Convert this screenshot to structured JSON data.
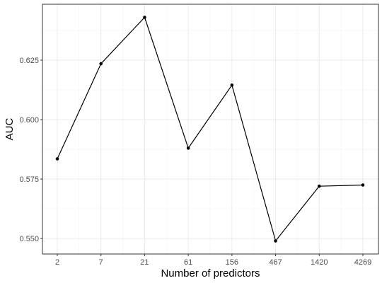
{
  "chart_data": {
    "type": "line",
    "title": "",
    "xlabel": "Number of predictors",
    "ylabel": "AUC",
    "x": [
      "2",
      "7",
      "21",
      "61",
      "156",
      "467",
      "1420",
      "4269"
    ],
    "series": [
      {
        "values": [
          0.5835,
          0.6235,
          0.643,
          0.588,
          0.6145,
          0.549,
          0.572,
          0.5725
        ]
      }
    ],
    "ylim": [
      0.5435,
      0.6485
    ],
    "yticks": [
      0.55,
      0.575,
      0.6,
      0.625
    ],
    "ytick_labels": [
      "0.550",
      "0.575",
      "0.600",
      "0.625"
    ],
    "grid": true,
    "legend": "none",
    "colors": {
      "line": "#000000",
      "point": "#000000",
      "grid_major": "#ebebeb",
      "grid_minor": "#f5f5f5",
      "panel_border": "#333333"
    }
  }
}
